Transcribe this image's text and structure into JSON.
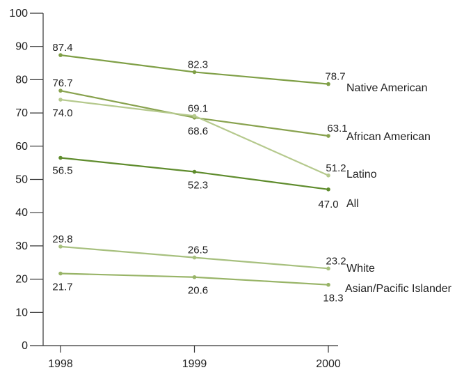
{
  "chart_data": {
    "type": "line",
    "x": [
      "1998",
      "1999",
      "2000"
    ],
    "ylim": [
      0,
      100
    ],
    "yticks": [
      "0",
      "10",
      "20",
      "30",
      "40",
      "50",
      "60",
      "70",
      "80",
      "90",
      "100"
    ],
    "grid": false,
    "series": [
      {
        "name": "Native American",
        "values": [
          87.4,
          82.3,
          78.7
        ],
        "labels": [
          "87.4",
          "82.3",
          "78.7"
        ],
        "color": "#7f9f46"
      },
      {
        "name": "African American",
        "values": [
          76.7,
          68.6,
          63.1
        ],
        "labels": [
          "76.7",
          "68.6",
          "63.1"
        ],
        "color": "#88a24e"
      },
      {
        "name": "Latino",
        "values": [
          74.0,
          69.1,
          51.2
        ],
        "labels": [
          "74.0",
          "69.1",
          "51.2"
        ],
        "color": "#b5c98d"
      },
      {
        "name": "All",
        "values": [
          56.5,
          52.3,
          47.0
        ],
        "labels": [
          "56.5",
          "52.3",
          "47.0"
        ],
        "color": "#5f8c2d"
      },
      {
        "name": "White",
        "values": [
          29.8,
          26.5,
          23.2
        ],
        "labels": [
          "29.8",
          "26.5",
          "23.2"
        ],
        "color": "#a7c07e"
      },
      {
        "name": "Asian/Pacific Islander",
        "values": [
          21.7,
          20.6,
          18.3
        ],
        "labels": [
          "21.7",
          "20.6",
          "18.3"
        ],
        "color": "#98b467"
      }
    ]
  }
}
